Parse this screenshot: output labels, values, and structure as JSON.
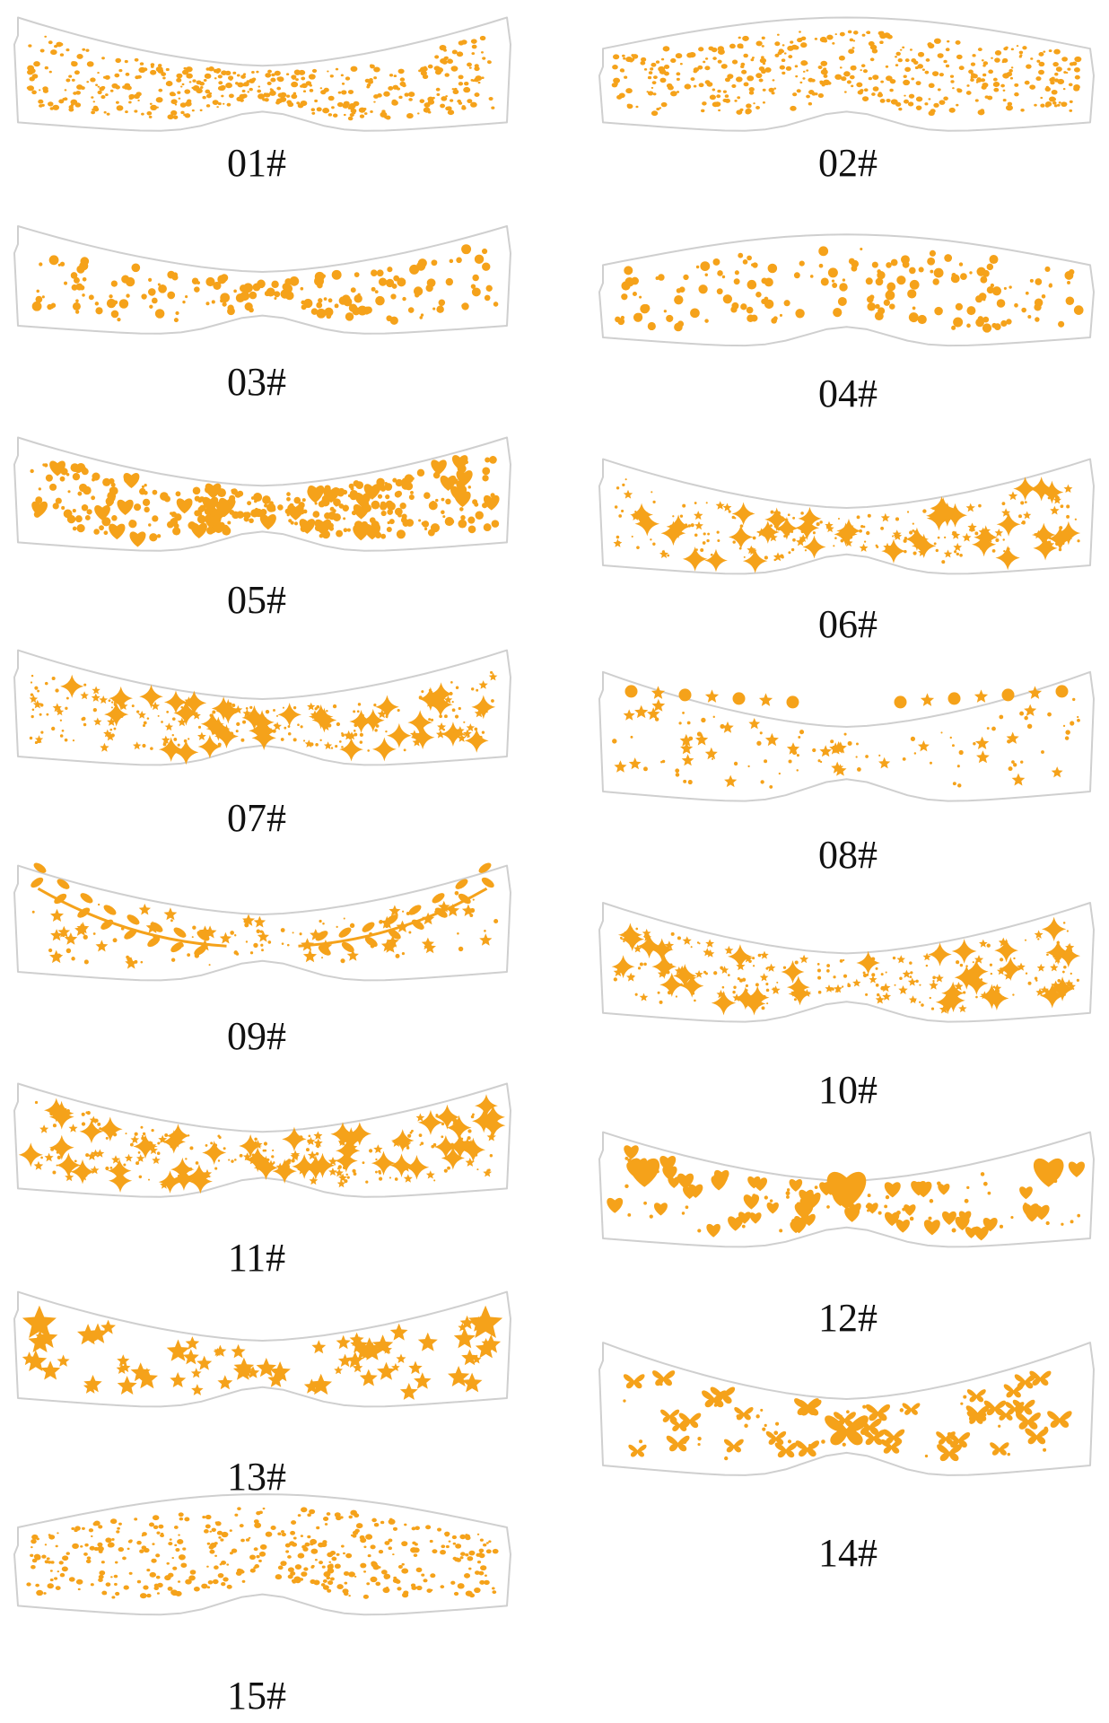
{
  "colors": {
    "accent": "#f5a21a",
    "outline": "#cfcfcf",
    "label": "#111111"
  },
  "items": [
    {
      "label": "01#",
      "pattern": "freckles"
    },
    {
      "label": "02#",
      "pattern": "freckles"
    },
    {
      "label": "03#",
      "pattern": "dots"
    },
    {
      "label": "04#",
      "pattern": "dots"
    },
    {
      "label": "05#",
      "pattern": "hearts-and-dots"
    },
    {
      "label": "06#",
      "pattern": "sparkles"
    },
    {
      "label": "07#",
      "pattern": "sparkles"
    },
    {
      "label": "08#",
      "pattern": "moon-and-stars"
    },
    {
      "label": "09#",
      "pattern": "moon-and-vines"
    },
    {
      "label": "10#",
      "pattern": "sparkles"
    },
    {
      "label": "11#",
      "pattern": "sparkles"
    },
    {
      "label": "12#",
      "pattern": "hearts"
    },
    {
      "label": "13#",
      "pattern": "stars"
    },
    {
      "label": "14#",
      "pattern": "butterflies"
    },
    {
      "label": "15#",
      "pattern": "freckles"
    }
  ]
}
